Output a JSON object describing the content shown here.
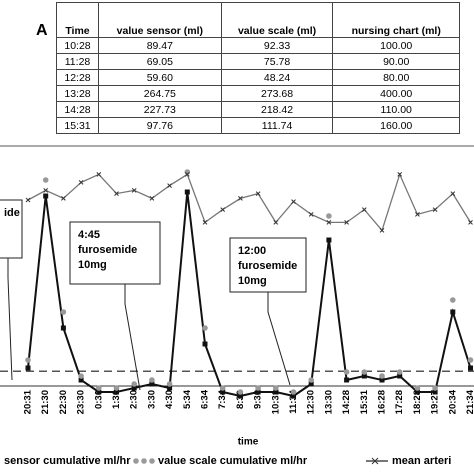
{
  "panel_label": "A",
  "table": {
    "header": [
      "Time",
      "value sensor (ml)",
      "value scale (ml)",
      "nursing chart (ml)"
    ],
    "rows": [
      [
        "10:28",
        "89.47",
        "92.33",
        "100.00"
      ],
      [
        "11:28",
        "69.05",
        "75.78",
        "90.00"
      ],
      [
        "12:28",
        "59.60",
        "48.24",
        "80.00"
      ],
      [
        "13:28",
        "264.75",
        "273.68",
        "400.00"
      ],
      [
        "14:28",
        "227.73",
        "218.42",
        "110.00"
      ],
      [
        "15:31",
        "97.76",
        "111.74",
        "160.00"
      ]
    ]
  },
  "chart_data": {
    "type": "line",
    "xlabel": "time",
    "categories": [
      "20:31",
      "21:30",
      "22:30",
      "23:30",
      "0:30",
      "1:30",
      "2:30",
      "3:30",
      "4:30",
      "5:34",
      "6:34",
      "7:34",
      "8:30",
      "9:30",
      "10:31",
      "11:34",
      "12:30",
      "13:30",
      "14:28",
      "15:31",
      "16:28",
      "17:28",
      "18:28",
      "19:27",
      "20:34",
      "21:34"
    ],
    "ylim": [
      0,
      300
    ],
    "hline": 36,
    "series": [
      {
        "name": "sensor cumulative ml/hr",
        "color": "#111111",
        "style": "line-square",
        "values": [
          40,
          255,
          90,
          25,
          10,
          10,
          15,
          20,
          15,
          260,
          70,
          10,
          5,
          10,
          10,
          5,
          20,
          200,
          25,
          30,
          25,
          30,
          10,
          10,
          110,
          40
        ]
      },
      {
        "name": "value  scale cumulative ml/hr",
        "color": "#999999",
        "style": "dots",
        "values": [
          50,
          275,
          110,
          30,
          15,
          15,
          20,
          25,
          20,
          285,
          90,
          15,
          10,
          15,
          15,
          10,
          25,
          230,
          35,
          35,
          30,
          35,
          15,
          15,
          125,
          50
        ]
      },
      {
        "name": "mean arteri",
        "color": "#777777",
        "style": "line-x",
        "values": [
          250,
          262,
          252,
          272,
          282,
          258,
          262,
          252,
          268,
          282,
          222,
          238,
          252,
          258,
          222,
          248,
          232,
          222,
          222,
          238,
          212,
          282,
          232,
          238,
          258,
          222
        ]
      }
    ],
    "annotations": [
      {
        "lines": [
          "ide"
        ]
      },
      {
        "lines": [
          "4:45",
          "furosemide",
          "10mg"
        ]
      },
      {
        "lines": [
          "12:00",
          "furosemide",
          "10mg"
        ]
      }
    ]
  }
}
